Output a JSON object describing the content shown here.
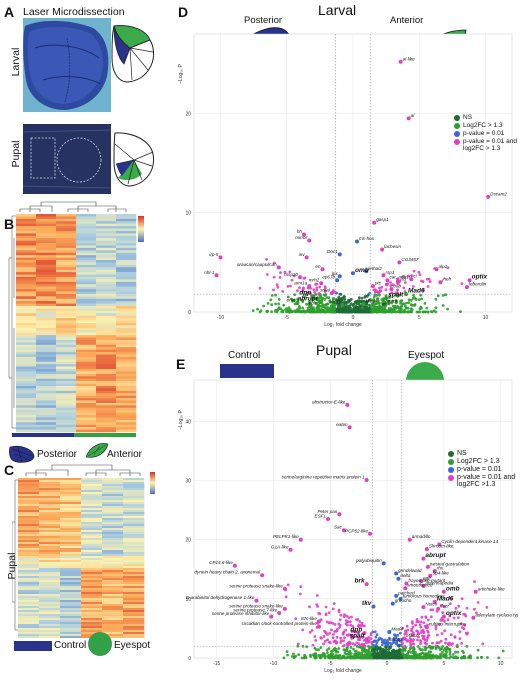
{
  "panels": {
    "a": {
      "letter": "A",
      "title": "Laser Microdissection",
      "row_top": "Larval",
      "row_bottom": "Pupal"
    },
    "b": {
      "letter": "B",
      "label_posterior": "Posterior",
      "label_anterior": "Anterior",
      "bar_colors": [
        "#2a338c",
        "#33a048"
      ]
    },
    "c": {
      "letter": "C",
      "row_label": "Pupal",
      "label_control": "Control",
      "label_eyespot": "Eyespot",
      "bar_colors": [
        "#2a338c",
        "#33a048"
      ]
    },
    "d": {
      "letter": "D",
      "title": "Larval",
      "left_label": "Posterior",
      "right_label": "Anterior"
    },
    "e": {
      "letter": "E",
      "title": "Pupal",
      "left_label": "Control",
      "right_label": "Eyespot"
    }
  },
  "colors": {
    "ns": "#1e6b35",
    "log2fc": "#2e9e2e",
    "pvalue": "#3a68d8",
    "both": "#e23fc4",
    "posterior_blue": "#2a338c",
    "anterior_green": "#3aaa4a"
  },
  "chart_data": [
    {
      "type": "scatter",
      "panel": "D",
      "title": "Larval",
      "xlabel": "Log₂ fold change",
      "ylabel": "−Log₁₀ P",
      "xlim": [
        -12,
        12
      ],
      "ylim": [
        0,
        28
      ],
      "x_ticks": [
        "-10",
        "-5",
        "0",
        "5",
        "10"
      ],
      "y_ticks": [
        "0",
        "10",
        "20"
      ],
      "thresholds": {
        "log2fc": 1.3,
        "pvalue_y": 1.8
      },
      "legend": [
        "NS",
        "Log2FC > 1.3",
        "p-value = 0.01",
        "p-value = 0.01 and log2FC > 1.3"
      ],
      "labeled_points": [
        {
          "x": 3.6,
          "y": 25.2,
          "label": "al-like"
        },
        {
          "x": 4.2,
          "y": 19.5,
          "label": "al"
        },
        {
          "x": 10.2,
          "y": 11.6,
          "label": "Dscam2"
        },
        {
          "x": 1.6,
          "y": 9.0,
          "label": "gasp1"
        },
        {
          "x": -3.7,
          "y": 7.8,
          "label": "hh"
        },
        {
          "x": -3.3,
          "y": 7.2,
          "label": "mirror"
        },
        {
          "x": 0.3,
          "y": 7.1,
          "label": "ms-hox"
        },
        {
          "x": 2.2,
          "y": 6.3,
          "label": "lachesin"
        },
        {
          "x": -3.5,
          "y": 5.5,
          "label": "inv"
        },
        {
          "x": -1.0,
          "y": 5.8,
          "label": "Doc1"
        },
        {
          "x": 3.5,
          "y": 5.0,
          "label": "CG3457"
        },
        {
          "x": -2.3,
          "y": 4.3,
          "label": "en"
        },
        {
          "x": 1.0,
          "y": 4.1,
          "label": "lethal2"
        },
        {
          "x": 0.0,
          "y": 3.9,
          "label": "omb"
        },
        {
          "x": -1.0,
          "y": 3.6,
          "label": "lpx"
        },
        {
          "x": -5.6,
          "y": 4.5,
          "label": "araucan/caupolican"
        },
        {
          "x": -4.0,
          "y": 3.5,
          "label": "msp20"
        },
        {
          "x": -1.2,
          "y": 3.2,
          "label": "ep67b"
        },
        {
          "x": 2.3,
          "y": 3.7,
          "label": "rsp1"
        },
        {
          "x": 2.6,
          "y": 3.2,
          "label": "car_antr10"
        },
        {
          "x": 4.4,
          "y": 3.3,
          "label": "ci"
        },
        {
          "x": 6.3,
          "y": 4.3,
          "label": "alp2"
        },
        {
          "x": -2.4,
          "y": 2.9,
          "label": "mrh2"
        },
        {
          "x": -3.3,
          "y": 2.6,
          "label": "arm1a"
        },
        {
          "x": -10.0,
          "y": 5.5,
          "label": "irp-5"
        },
        {
          "x": -10.3,
          "y": 3.7,
          "label": "nhl-1"
        },
        {
          "x": 1.5,
          "y": 2.6,
          "label": "ptc"
        },
        {
          "x": 3.4,
          "y": 3.0,
          "label": "AB"
        },
        {
          "x": 2.9,
          "y": 2.3,
          "label": "bab"
        },
        {
          "x": 6.6,
          "y": 3.0,
          "label": "jheh"
        },
        {
          "x": 8.8,
          "y": 3.2,
          "label": "optix"
        },
        {
          "x": 8.6,
          "y": 2.5,
          "label": "leberolin"
        },
        {
          "x": 4.0,
          "y": 1.8,
          "label": "Mad6"
        },
        {
          "x": -1.6,
          "y": 1.9,
          "label": "smal"
        },
        {
          "x": 2.5,
          "y": 1.4,
          "label": "spalt"
        },
        {
          "x": -3.0,
          "y": 1.6,
          "label": "dpp"
        },
        {
          "x": -2.5,
          "y": 1.0,
          "label": "abrupt"
        },
        {
          "x": -4.2,
          "y": 0.9,
          "label": "emc"
        },
        {
          "x": -2.6,
          "y": 0.6,
          "label": "egfr"
        },
        {
          "x": -0.8,
          "y": 0.7,
          "label": "Mad3"
        },
        {
          "x": 0.8,
          "y": 0.8,
          "label": "Mad4"
        },
        {
          "x": 2.3,
          "y": 0.8,
          "label": "Notch"
        },
        {
          "x": 2.0,
          "y": 0.5,
          "label": "wnr"
        }
      ]
    },
    {
      "type": "scatter",
      "panel": "E",
      "title": "Pupal",
      "xlabel": "Log₂ fold change",
      "ylabel": "−Log₁₀ P",
      "xlim": [
        -17,
        11
      ],
      "ylim": [
        0,
        47
      ],
      "x_ticks": [
        "-15",
        "-10",
        "-5",
        "0",
        "5",
        "10"
      ],
      "y_ticks": [
        "0",
        "10",
        "20",
        "30",
        "40"
      ],
      "thresholds": {
        "log2fc": 1.3,
        "pvalue_y": 2.0
      },
      "legend": [
        "NS",
        "Log2FC > 1.3",
        "p-value = 0.01",
        "p-value = 0.01 and log2FC >1.3"
      ],
      "labeled_points": [
        {
          "x": -3.5,
          "y": 42.8,
          "label": "obstructor-E-like"
        },
        {
          "x": -3.3,
          "y": 39.0,
          "label": "eaten"
        },
        {
          "x": -1.8,
          "y": 30.1,
          "label": "serine/arginine repetitive matrix protein 1"
        },
        {
          "x": -4.2,
          "y": 24.3,
          "label": "Peter pan"
        },
        {
          "x": -5.2,
          "y": 23.5,
          "label": "ESF1"
        },
        {
          "x": -3.8,
          "y": 21.6,
          "label": "Sac"
        },
        {
          "x": -1.5,
          "y": 21.0,
          "label": "PCP52-like"
        },
        {
          "x": -7.6,
          "y": 20.0,
          "label": "PELPK1-like"
        },
        {
          "x": -8.5,
          "y": 18.3,
          "label": "G1A-like"
        },
        {
          "x": 2.0,
          "y": 20.0,
          "label": "armadillo"
        },
        {
          "x": 4.6,
          "y": 19.2,
          "label": "Cyclin-dependent kinase 14"
        },
        {
          "x": 3.5,
          "y": 18.4,
          "label": "Shroom-like"
        },
        {
          "x": 3.2,
          "y": 16.8,
          "label": "abrupt"
        },
        {
          "x": -0.3,
          "y": 16.0,
          "label": "polyubiquitin"
        },
        {
          "x": -13.4,
          "y": 15.6,
          "label": "CP14.6-like"
        },
        {
          "x": 3.6,
          "y": 15.4,
          "label": "twisted gastrulation"
        },
        {
          "x": 4.2,
          "y": 14.7,
          "label": "rhx"
        },
        {
          "x": 0.8,
          "y": 14.3,
          "label": "grindelwald"
        },
        {
          "x": 3.8,
          "y": 13.9,
          "label": "Sp4-like"
        },
        {
          "x": -11.0,
          "y": 14.0,
          "label": "dynein heavy chain 2, axonemal"
        },
        {
          "x": 1.0,
          "y": 13.4,
          "label": "delta"
        },
        {
          "x": -1.8,
          "y": 12.5,
          "label": "brk"
        },
        {
          "x": 3.0,
          "y": 13.0,
          "label": "egfr"
        },
        {
          "x": 1.7,
          "y": 12.6,
          "label": "frayed-like-mutant"
        },
        {
          "x": 3.2,
          "y": 12.2,
          "label": "antennapedia"
        },
        {
          "x": 1.6,
          "y": 11.8,
          "label": "smoothened"
        },
        {
          "x": -9.0,
          "y": 11.7,
          "label": "serine protease snake-like"
        },
        {
          "x": 5.0,
          "y": 11.2,
          "label": "omb"
        },
        {
          "x": 7.8,
          "y": 11.2,
          "label": "artichoke-like"
        },
        {
          "x": 0.8,
          "y": 10.5,
          "label": "patched"
        },
        {
          "x": 1.2,
          "y": 10.0,
          "label": "tumorous homeobox"
        },
        {
          "x": 4.2,
          "y": 9.5,
          "label": "Mad6"
        },
        {
          "x": -11.5,
          "y": 9.7,
          "label": "D-arabinitol dehydrogenase 1-like"
        },
        {
          "x": 0.5,
          "y": 9.2,
          "label": "groucho"
        },
        {
          "x": -1.2,
          "y": 8.7,
          "label": "tkv"
        },
        {
          "x": 3.2,
          "y": 8.6,
          "label": "Notch"
        },
        {
          "x": 4.5,
          "y": 8.3,
          "label": "dscr"
        },
        {
          "x": -9.0,
          "y": 8.3,
          "label": "serine protease snake-like"
        },
        {
          "x": -9.5,
          "y": 7.6,
          "label": "serine protease 7-like"
        },
        {
          "x": -10.2,
          "y": 7.0,
          "label": "serine protease inhibitor-like"
        },
        {
          "x": 5.0,
          "y": 7.0,
          "label": "optix"
        },
        {
          "x": 7.6,
          "y": 6.8,
          "label": "adenylate cyclase type 2-like"
        },
        {
          "x": -6.0,
          "y": 6.2,
          "label": "87c-like"
        },
        {
          "x": -6.0,
          "y": 5.3,
          "label": "circadian clock-controlled protein-like"
        },
        {
          "x": 3.5,
          "y": 5.2,
          "label": "cubitus interruptus"
        },
        {
          "x": -2.0,
          "y": 4.2,
          "label": "dpp"
        },
        {
          "x": -1.8,
          "y": 3.2,
          "label": "spalt"
        },
        {
          "x": 0.2,
          "y": 4.4,
          "label": "Mad4"
        },
        {
          "x": 0.0,
          "y": 2.6,
          "label": "kmmps"
        },
        {
          "x": 1.5,
          "y": 3.3,
          "label": "Mad3"
        }
      ]
    }
  ]
}
